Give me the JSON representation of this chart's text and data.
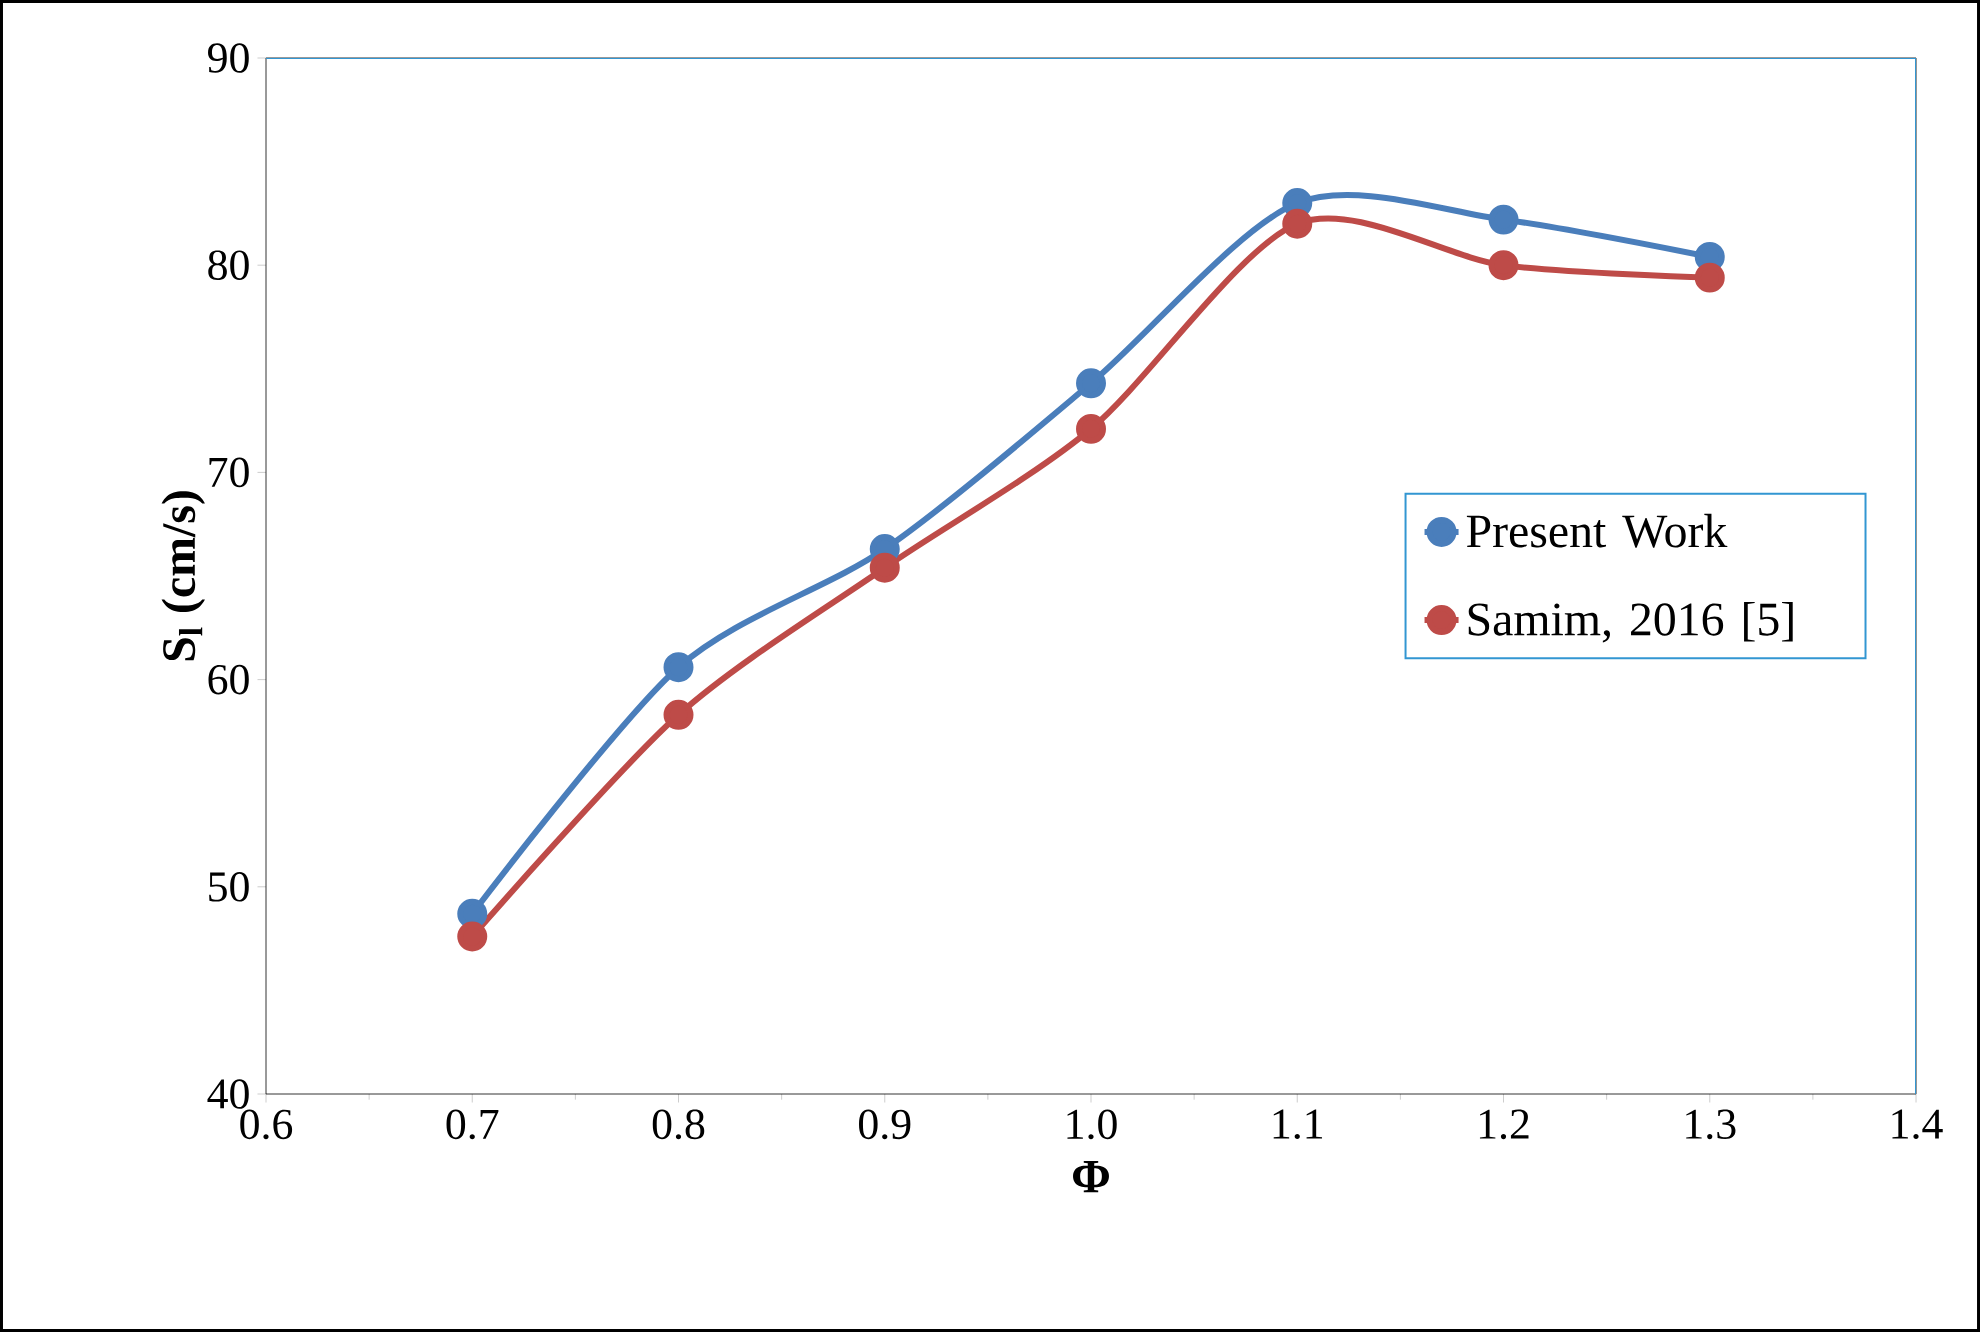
{
  "chart_data": {
    "type": "line",
    "xlabel": "Φ",
    "ylabel": "S$_{l}$ (cm/s)",
    "series": [
      {
        "name": "Present Work",
        "color": "#4a7ebb",
        "x": [
          0.7,
          0.8,
          0.9,
          1.0,
          1.1,
          1.2,
          1.3
        ],
        "values": [
          48.7,
          60.6,
          66.3,
          74.3,
          83.0,
          82.2,
          80.4
        ]
      },
      {
        "name": "Samim, 2016 [5]",
        "color": "#be4b48",
        "x": [
          0.7,
          0.8,
          0.9,
          1.0,
          1.1,
          1.2,
          1.3
        ],
        "values": [
          47.6,
          58.3,
          65.4,
          72.1,
          82.0,
          80.0,
          79.4
        ]
      }
    ],
    "xlim": [
      0.6,
      1.4
    ],
    "ylim": [
      40,
      90
    ],
    "xticks": [
      0.6,
      0.7,
      0.8,
      0.9,
      {
        "value": 1.0,
        "label": "1.0"
      },
      1.1,
      1.2,
      1.3,
      1.4
    ],
    "yticks": [
      40,
      50,
      60,
      70,
      80,
      90
    ],
    "grid": false,
    "legend": "right",
    "marker": "circle",
    "line_style": "solid"
  }
}
